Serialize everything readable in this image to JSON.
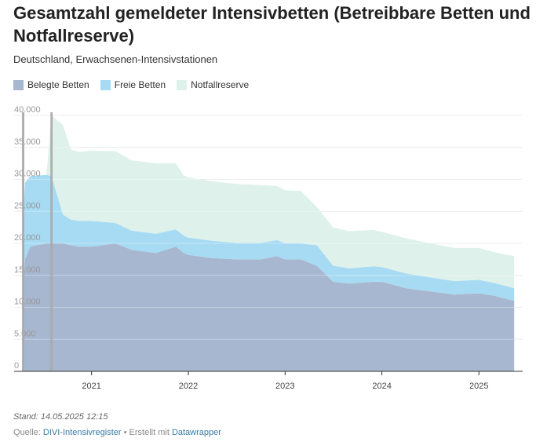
{
  "header": {
    "title": "Gesamtzahl gemeldeter Intensivbetten (Betreibbare Betten und Notfallreserve)",
    "subtitle": "Deutschland, Erwachsenen-Intensivstationen"
  },
  "legend": [
    {
      "label": "Belegte Betten",
      "color": "#a7b7d0"
    },
    {
      "label": "Freie Betten",
      "color": "#a6dbf3"
    },
    {
      "label": "Notfallreserve",
      "color": "#dff1eb"
    }
  ],
  "footer": {
    "stand": "Stand: 14.05.2025 12:15",
    "quelle_prefix": "Quelle: ",
    "quelle_link": "DIVI-Intensivregister",
    "created_text": " • Erstellt mit ",
    "created_link": "Datawrapper"
  },
  "chart_data": {
    "type": "area",
    "stacked": true,
    "ylim": [
      0,
      40000
    ],
    "yticks": [
      0,
      5000,
      10000,
      15000,
      20000,
      25000,
      30000,
      35000,
      40000
    ],
    "ytick_labels": [
      "0",
      "5.000",
      "10.000",
      "15.000",
      "20.000",
      "25.000",
      "30.000",
      "35.000",
      "40.000"
    ],
    "xlim": [
      "2020-03-15",
      "2025-06-15"
    ],
    "xticks": [
      "2021-01-01",
      "2022-01-01",
      "2023-01-01",
      "2024-01-01",
      "2025-01-01"
    ],
    "xtick_labels": [
      "2021",
      "2022",
      "2023",
      "2024",
      "2025"
    ],
    "grid": true,
    "legend_position": "top-left",
    "vlines": [
      "2020-04-16",
      "2020-04-20",
      "2020-08-01",
      "2020-08-05"
    ],
    "x": [
      "2020-04-15",
      "2020-04-25",
      "2020-05-15",
      "2020-07-15",
      "2020-08-03",
      "2020-09-15",
      "2020-10-15",
      "2020-11-15",
      "2021-01-01",
      "2021-04-01",
      "2021-06-01",
      "2021-09-01",
      "2021-11-15",
      "2021-12-15",
      "2022-01-01",
      "2022-04-01",
      "2022-07-01",
      "2022-10-01",
      "2022-12-01",
      "2023-01-01",
      "2023-03-01",
      "2023-05-01",
      "2023-07-01",
      "2023-09-01",
      "2023-12-01",
      "2024-01-01",
      "2024-04-01",
      "2024-07-01",
      "2024-10-01",
      "2025-01-01",
      "2025-03-01",
      "2025-05-14"
    ],
    "series": [
      {
        "name": "Belegte Betten",
        "values": [
          12000,
          17500,
          19500,
          20000,
          20000,
          20000,
          19700,
          19500,
          19500,
          20000,
          19000,
          18500,
          19500,
          18500,
          18200,
          17700,
          17500,
          17500,
          18000,
          17500,
          17500,
          16500,
          14000,
          13700,
          14000,
          14000,
          13000,
          12500,
          12000,
          12200,
          11800,
          11000
        ]
      },
      {
        "name": "Freie Betten",
        "values": [
          9000,
          12000,
          11000,
          10700,
          10500,
          4500,
          4000,
          4000,
          4000,
          3200,
          3000,
          3000,
          2700,
          2700,
          2700,
          2700,
          2600,
          2600,
          2500,
          2500,
          2500,
          3200,
          2500,
          2400,
          2400,
          2300,
          2300,
          2200,
          2100,
          2100,
          2000,
          2000
        ]
      },
      {
        "name": "Notfallreserve",
        "values": [
          0,
          0,
          0,
          0,
          9500,
          14000,
          11000,
          10800,
          11000,
          11200,
          11000,
          11000,
          10300,
          9400,
          9400,
          9300,
          9200,
          9000,
          8500,
          8300,
          8200,
          6000,
          6000,
          5800,
          5700,
          5500,
          5500,
          5300,
          5200,
          5000,
          4800,
          5000
        ]
      }
    ]
  }
}
